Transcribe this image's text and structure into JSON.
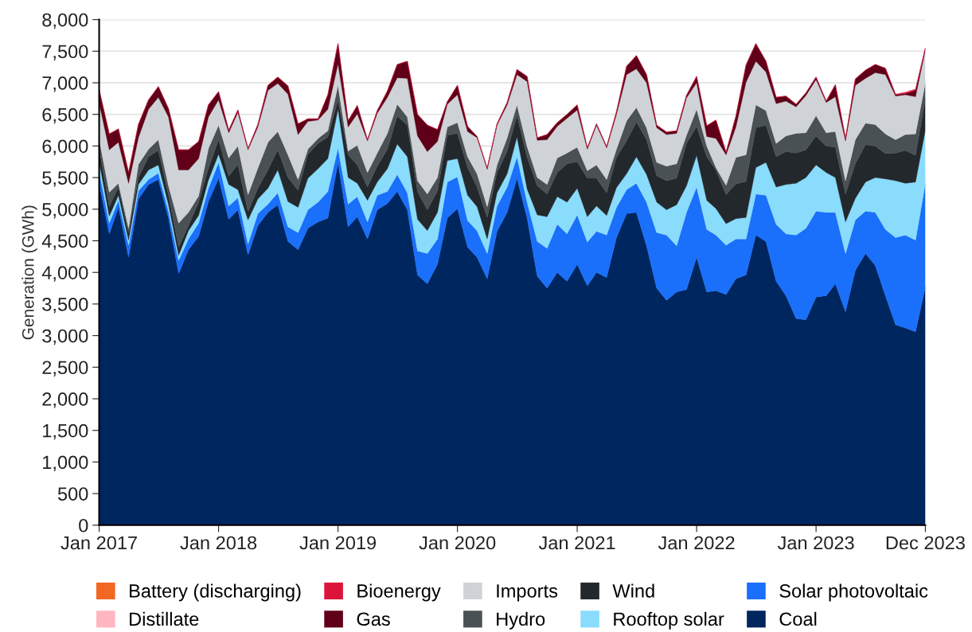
{
  "chart_data": {
    "type": "area",
    "stacked": true,
    "ylabel": "Generation (GWh)",
    "x": [
      "2017-01",
      "2017-02",
      "2017-03",
      "2017-04",
      "2017-05",
      "2017-06",
      "2017-07",
      "2017-08",
      "2017-09",
      "2017-10",
      "2017-11",
      "2017-12",
      "2018-01",
      "2018-02",
      "2018-03",
      "2018-04",
      "2018-05",
      "2018-06",
      "2018-07",
      "2018-08",
      "2018-09",
      "2018-10",
      "2018-11",
      "2018-12",
      "2019-01",
      "2019-02",
      "2019-03",
      "2019-04",
      "2019-05",
      "2019-06",
      "2019-07",
      "2019-08",
      "2019-09",
      "2019-10",
      "2019-11",
      "2019-12",
      "2020-01",
      "2020-02",
      "2020-03",
      "2020-04",
      "2020-05",
      "2020-06",
      "2020-07",
      "2020-08",
      "2020-09",
      "2020-10",
      "2020-11",
      "2020-12",
      "2021-01",
      "2021-02",
      "2021-03",
      "2021-04",
      "2021-05",
      "2021-06",
      "2021-07",
      "2021-08",
      "2021-09",
      "2021-10",
      "2021-11",
      "2021-12",
      "2022-01",
      "2022-02",
      "2022-03",
      "2022-04",
      "2022-05",
      "2022-06",
      "2022-07",
      "2022-08",
      "2022-09",
      "2022-10",
      "2022-11",
      "2022-12",
      "2023-01",
      "2023-02",
      "2023-03",
      "2023-04",
      "2023-05",
      "2023-06",
      "2023-07",
      "2023-08",
      "2023-09",
      "2023-10",
      "2023-11",
      "2023-12"
    ],
    "series": [
      {
        "name": "Coal",
        "color": "#00265f",
        "values": [
          5410,
          4610,
          5030,
          4240,
          5160,
          5390,
          5470,
          4860,
          3980,
          4360,
          4570,
          5120,
          5490,
          4840,
          4990,
          4280,
          4740,
          4950,
          5070,
          4490,
          4360,
          4700,
          4800,
          4860,
          5740,
          4720,
          4880,
          4530,
          4990,
          5090,
          5280,
          4990,
          3960,
          3820,
          4130,
          4860,
          5010,
          4400,
          4240,
          3900,
          4650,
          4950,
          5490,
          4860,
          3940,
          3750,
          4000,
          3860,
          4130,
          3790,
          4000,
          3920,
          4550,
          4930,
          4950,
          4420,
          3750,
          3560,
          3690,
          3730,
          4240,
          3690,
          3710,
          3650,
          3900,
          3960,
          4590,
          4490,
          3860,
          3630,
          3270,
          3250,
          3610,
          3630,
          3820,
          3380,
          4030,
          4300,
          4110,
          3630,
          3170,
          3120,
          3060,
          3770
        ]
      },
      {
        "name": "Solar photovoltaic",
        "color": "#1a6ffb",
        "values": [
          190,
          170,
          110,
          190,
          130,
          80,
          100,
          110,
          210,
          170,
          210,
          210,
          250,
          210,
          190,
          170,
          190,
          130,
          190,
          230,
          270,
          290,
          310,
          420,
          230,
          360,
          320,
          270,
          230,
          190,
          270,
          270,
          380,
          480,
          400,
          570,
          500,
          420,
          420,
          400,
          400,
          400,
          340,
          250,
          550,
          630,
          760,
          750,
          780,
          690,
          650,
          670,
          480,
          380,
          460,
          690,
          880,
          1030,
          730,
          1220,
          1110,
          990,
          880,
          780,
          630,
          570,
          650,
          730,
          900,
          980,
          1320,
          1450,
          1360,
          1320,
          1130,
          920,
          800,
          670,
          840,
          1050,
          1380,
          1470,
          1450,
          1640
        ]
      },
      {
        "name": "Rooftop solar",
        "color": "#8adcfd",
        "values": [
          150,
          110,
          80,
          80,
          100,
          150,
          130,
          100,
          80,
          130,
          120,
          130,
          130,
          340,
          130,
          380,
          230,
          250,
          360,
          400,
          400,
          500,
          530,
          520,
          610,
          420,
          210,
          340,
          210,
          360,
          480,
          570,
          500,
          360,
          420,
          340,
          290,
          400,
          380,
          230,
          210,
          210,
          310,
          210,
          420,
          500,
          440,
          500,
          420,
          400,
          400,
          310,
          310,
          250,
          420,
          440,
          480,
          400,
          650,
          420,
          500,
          460,
          420,
          340,
          320,
          340,
          420,
          520,
          590,
          780,
          820,
          800,
          730,
          630,
          550,
          500,
          340,
          460,
          550,
          800,
          900,
          820,
          920,
          840
        ]
      },
      {
        "name": "Wind",
        "color": "#23282c",
        "values": [
          210,
          150,
          130,
          110,
          110,
          210,
          230,
          150,
          130,
          80,
          210,
          190,
          230,
          130,
          400,
          130,
          170,
          290,
          320,
          380,
          270,
          380,
          400,
          340,
          150,
          360,
          290,
          210,
          250,
          310,
          440,
          500,
          440,
          330,
          340,
          400,
          400,
          440,
          310,
          340,
          320,
          360,
          340,
          500,
          460,
          360,
          380,
          610,
          420,
          610,
          440,
          360,
          480,
          520,
          550,
          550,
          420,
          460,
          420,
          670,
          460,
          690,
          610,
          460,
          550,
          570,
          630,
          590,
          480,
          520,
          480,
          440,
          460,
          420,
          480,
          440,
          550,
          590,
          500,
          400,
          440,
          520,
          420,
          500
        ]
      },
      {
        "name": "Hydro",
        "color": "#4a5155",
        "values": [
          150,
          230,
          60,
          80,
          210,
          120,
          170,
          150,
          380,
          210,
          100,
          310,
          230,
          290,
          290,
          270,
          320,
          440,
          290,
          360,
          170,
          80,
          80,
          100,
          230,
          60,
          310,
          230,
          210,
          250,
          190,
          130,
          170,
          250,
          210,
          130,
          170,
          170,
          210,
          170,
          120,
          210,
          170,
          170,
          130,
          150,
          230,
          170,
          230,
          120,
          210,
          210,
          130,
          320,
          230,
          190,
          210,
          230,
          230,
          130,
          270,
          170,
          40,
          150,
          420,
          420,
          360,
          230,
          210,
          250,
          310,
          270,
          320,
          210,
          250,
          210,
          380,
          340,
          340,
          310,
          210,
          250,
          340,
          250
        ]
      },
      {
        "name": "Imports",
        "color": "#cfd3d7",
        "values": [
          570,
          670,
          650,
          710,
          420,
          630,
          670,
          1090,
          840,
          670,
          590,
          500,
          400,
          400,
          530,
          710,
          650,
          820,
          760,
          960,
          710,
          440,
          290,
          340,
          340,
          380,
          500,
          500,
          630,
          570,
          420,
          610,
          710,
          670,
          570,
          360,
          440,
          400,
          570,
          590,
          630,
          520,
          480,
          1030,
          590,
          710,
          500,
          550,
          590,
          340,
          630,
          500,
          550,
          730,
          610,
          710,
          550,
          500,
          480,
          590,
          420,
          150,
          460,
          480,
          480,
          1150,
          690,
          610,
          630,
          550,
          420,
          590,
          570,
          480,
          550,
          630,
          860,
          710,
          820,
          940,
          690,
          630,
          590,
          520
        ]
      },
      {
        "name": "Gas",
        "color": "#5f0018",
        "values": [
          210,
          250,
          210,
          170,
          210,
          150,
          170,
          130,
          320,
          320,
          270,
          190,
          130,
          40,
          40,
          20,
          40,
          80,
          100,
          130,
          170,
          40,
          20,
          230,
          320,
          100,
          130,
          20,
          40,
          100,
          210,
          270,
          340,
          420,
          190,
          40,
          150,
          80,
          20,
          20,
          20,
          40,
          80,
          80,
          40,
          80,
          60,
          60,
          80,
          20,
          20,
          20,
          40,
          130,
          210,
          130,
          40,
          40,
          40,
          40,
          100,
          170,
          290,
          40,
          170,
          270,
          280,
          170,
          100,
          80,
          40,
          40,
          40,
          20,
          190,
          40,
          100,
          130,
          130,
          100,
          20,
          20,
          100,
          30
        ]
      },
      {
        "name": "Bioenergy",
        "color": "#dc143c",
        "values": [
          0,
          0,
          0,
          0,
          0,
          0,
          0,
          0,
          0,
          0,
          0,
          0,
          0,
          0,
          0,
          0,
          0,
          0,
          0,
          0,
          0,
          0,
          0,
          0,
          0,
          0,
          0,
          0,
          0,
          0,
          0,
          0,
          0,
          0,
          0,
          0,
          0,
          0,
          0,
          0,
          0,
          0,
          0,
          0,
          0,
          0,
          0,
          0,
          0,
          0,
          0,
          0,
          0,
          0,
          0,
          0,
          0,
          0,
          0,
          0,
          0,
          0,
          0,
          0,
          0,
          0,
          0,
          0,
          0,
          0,
          0,
          0,
          0,
          0,
          0,
          0,
          0,
          0,
          0,
          0,
          10,
          20,
          20,
          0
        ]
      },
      {
        "name": "Distillate",
        "color": "#ffb6c1",
        "values": [
          null,
          null,
          null,
          null,
          null,
          null,
          null,
          null,
          null,
          null,
          null,
          null,
          null,
          null,
          null,
          null,
          null,
          null,
          null,
          null,
          null,
          null,
          null,
          null,
          null,
          null,
          null,
          null,
          null,
          null,
          null,
          null,
          null,
          null,
          null,
          null,
          null,
          null,
          null,
          null,
          null,
          null,
          null,
          null,
          null,
          null,
          null,
          null,
          null,
          null,
          null,
          null,
          null,
          null,
          null,
          null,
          null,
          null,
          null,
          null,
          null,
          null,
          null,
          null,
          null,
          null,
          null,
          null,
          null,
          null,
          null,
          null,
          null,
          null,
          null,
          null,
          null,
          null,
          null,
          null,
          null,
          null,
          null,
          null
        ]
      },
      {
        "name": "Battery (discharging)",
        "color": "#f26722",
        "values": [
          null,
          null,
          null,
          null,
          null,
          null,
          null,
          null,
          null,
          null,
          null,
          null,
          null,
          null,
          null,
          null,
          null,
          null,
          null,
          null,
          null,
          null,
          null,
          null,
          null,
          null,
          null,
          null,
          null,
          null,
          null,
          null,
          null,
          null,
          null,
          null,
          null,
          null,
          null,
          null,
          null,
          null,
          null,
          null,
          null,
          null,
          null,
          null,
          null,
          null,
          null,
          null,
          null,
          null,
          null,
          null,
          null,
          null,
          null,
          null,
          null,
          null,
          null,
          null,
          null,
          null,
          null,
          null,
          null,
          null,
          null,
          null,
          null,
          null,
          null,
          null,
          null,
          null,
          null,
          null,
          null,
          null,
          null,
          null
        ]
      }
    ],
    "xlim": [
      "2017-01",
      "2023-12"
    ],
    "xticks": [
      {
        "value": "2017-01",
        "label": "Jan 2017"
      },
      {
        "value": "2018-01",
        "label": "Jan 2018"
      },
      {
        "value": "2019-01",
        "label": "Jan 2019"
      },
      {
        "value": "2020-01",
        "label": "Jan 2020"
      },
      {
        "value": "2021-01",
        "label": "Jan 2021"
      },
      {
        "value": "2022-01",
        "label": "Jan 2022"
      },
      {
        "value": "2023-01",
        "label": "Jan 2023"
      },
      {
        "value": "2023-12",
        "label": "Dec 2023"
      }
    ],
    "ylim": [
      0,
      8000
    ],
    "yticks": [
      0,
      500,
      {
        "value": 1000,
        "label": "1,000"
      },
      {
        "value": 1500,
        "label": "1,500"
      },
      {
        "value": 2000,
        "label": "2,000"
      },
      {
        "value": 2500,
        "label": "2,500"
      },
      {
        "value": 3000,
        "label": "3,000"
      },
      {
        "value": 3500,
        "label": "3,500"
      },
      {
        "value": 4000,
        "label": "4,000"
      },
      {
        "value": 4500,
        "label": "4,500"
      },
      {
        "value": 5000,
        "label": "5,000"
      },
      {
        "value": 5500,
        "label": "5,500"
      },
      {
        "value": 6000,
        "label": "6,000"
      },
      {
        "value": 6500,
        "label": "6,500"
      },
      {
        "value": 7000,
        "label": "7,000"
      },
      {
        "value": 7500,
        "label": "7,500"
      },
      {
        "value": 8000,
        "label": "8,000"
      }
    ],
    "grid": "y",
    "legend": "bottom"
  }
}
